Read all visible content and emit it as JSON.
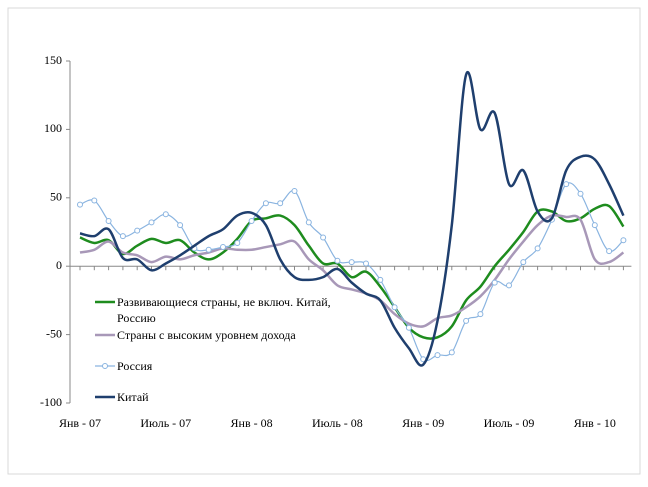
{
  "chart_data": {
    "type": "line",
    "categories": [
      "Янв - 07",
      null,
      null,
      null,
      null,
      null,
      "Июль - 07",
      null,
      null,
      null,
      null,
      null,
      "Янв - 08",
      null,
      null,
      null,
      null,
      null,
      "Июль - 08",
      null,
      null,
      null,
      null,
      null,
      "Янв - 09",
      null,
      null,
      null,
      null,
      null,
      "Июль - 09",
      null,
      null,
      null,
      null,
      null,
      "Янв - 10",
      null,
      null
    ],
    "series": [
      {
        "name": "Развивающиеся страны, не включ. Китай, Россию",
        "color": "#1e8c1e",
        "marker": false,
        "values": [
          21,
          17,
          19,
          9,
          15,
          20,
          17,
          19,
          10,
          5,
          10,
          20,
          33,
          35,
          37,
          30,
          15,
          2,
          2,
          -8,
          -4,
          -15,
          -30,
          -45,
          -52,
          -52,
          -44,
          -25,
          -15,
          0,
          12,
          25,
          40,
          40,
          33,
          35,
          42,
          44,
          29
        ]
      },
      {
        "name": "Страны с высоким уровнем дохода",
        "color": "#a898b8",
        "marker": false,
        "values": [
          10,
          12,
          18,
          10,
          8,
          3,
          7,
          5,
          8,
          10,
          13,
          12,
          12,
          14,
          16,
          18,
          5,
          -3,
          -14,
          -17,
          -20,
          -25,
          -35,
          -42,
          -44,
          -38,
          -36,
          -30,
          -22,
          -10,
          5,
          18,
          30,
          37,
          36,
          34,
          5,
          3,
          10
        ]
      },
      {
        "name": "Россия",
        "color": "#8ab4e0",
        "marker": true,
        "values": [
          45,
          48,
          33,
          22,
          26,
          32,
          38,
          30,
          13,
          12,
          14,
          17,
          33,
          46,
          46,
          55,
          32,
          21,
          4,
          3,
          2,
          -10,
          -30,
          -45,
          -68,
          -65,
          -63,
          -40,
          -35,
          -12,
          -14,
          3,
          13,
          34,
          60,
          53,
          30,
          11,
          19
        ]
      },
      {
        "name": "Китай",
        "color": "#1f3f6e",
        "marker": false,
        "values": [
          24,
          22,
          27,
          6,
          5,
          -3,
          2,
          8,
          15,
          22,
          27,
          37,
          39,
          30,
          5,
          -8,
          -10,
          -8,
          -2,
          -12,
          -20,
          -25,
          -45,
          -60,
          -72,
          -40,
          30,
          140,
          100,
          112,
          60,
          70,
          40,
          35,
          70,
          80,
          78,
          60,
          37
        ]
      }
    ],
    "ylim": [
      -100,
      150
    ],
    "yticks": [
      -100,
      -50,
      0,
      50,
      100,
      150
    ]
  }
}
